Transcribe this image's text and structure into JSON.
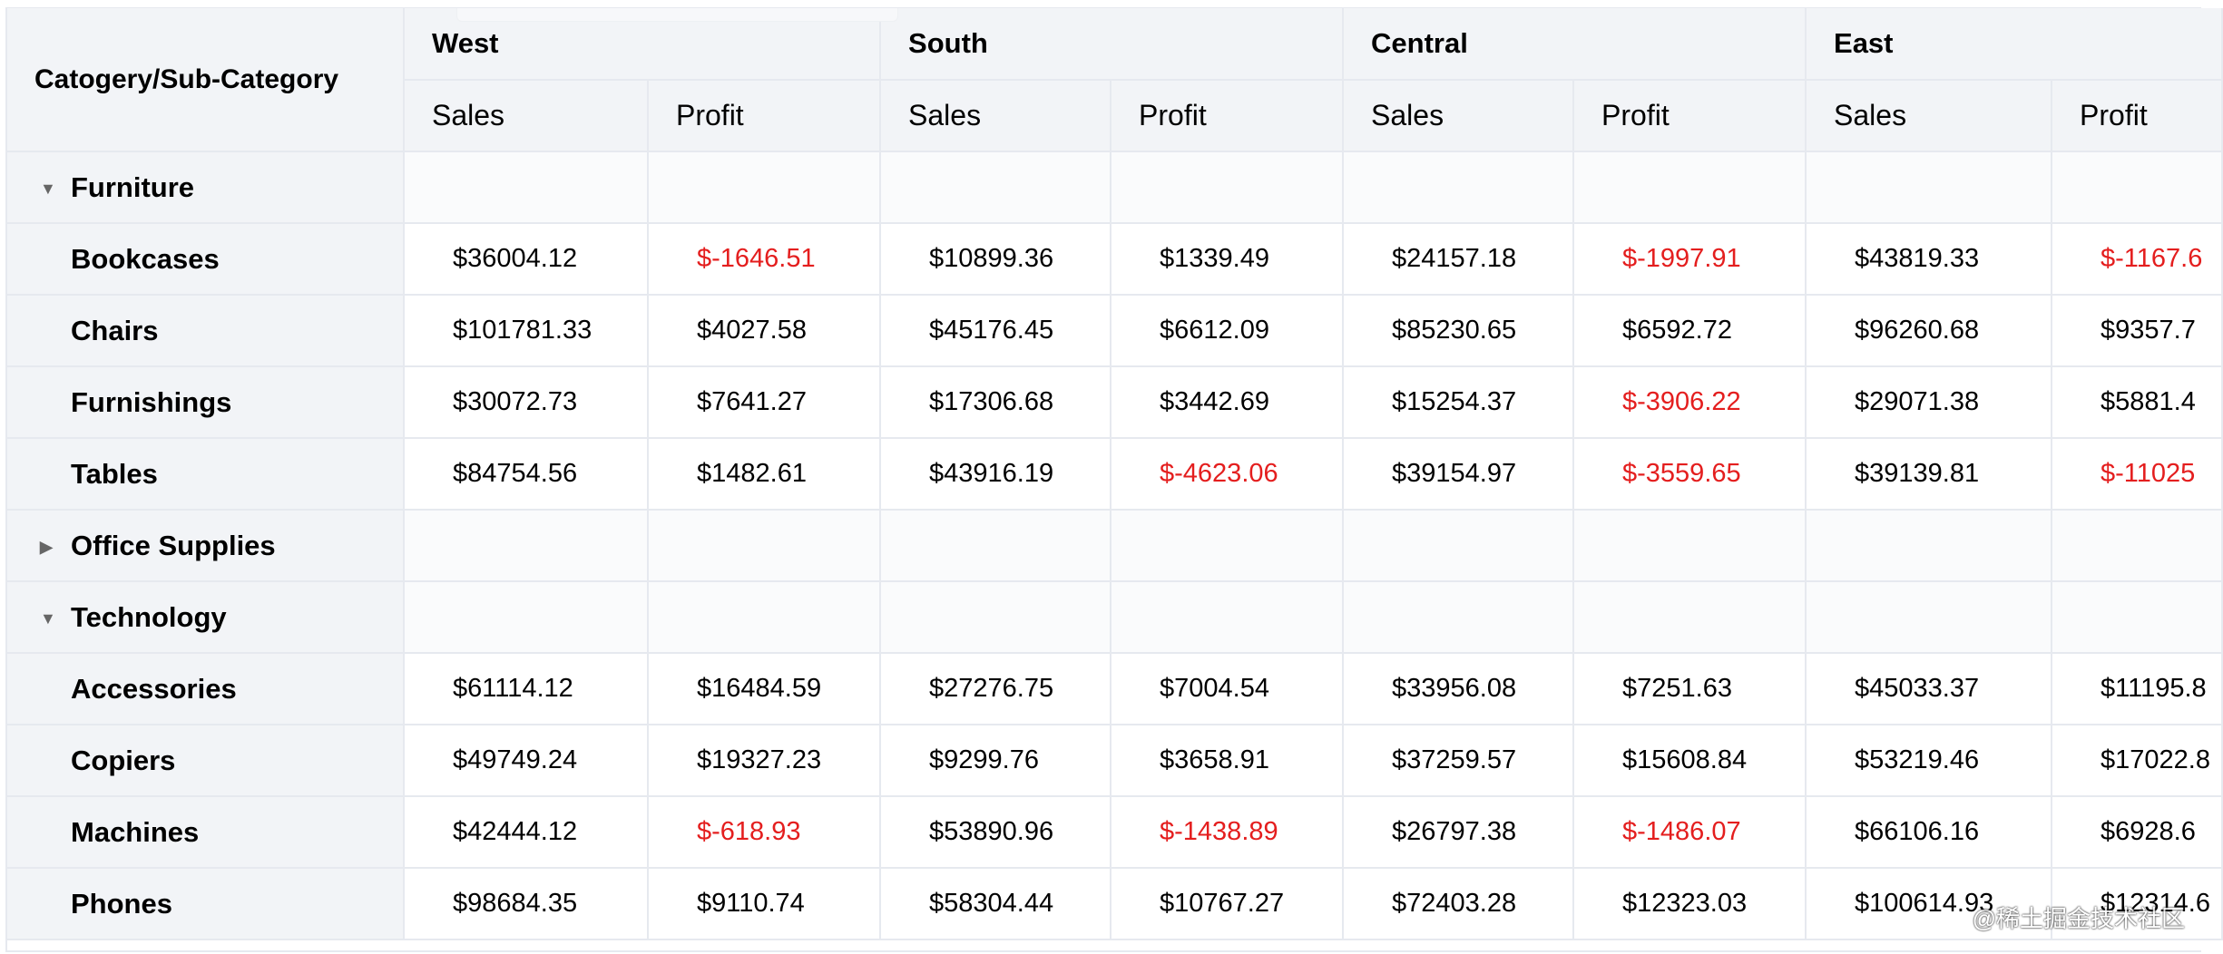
{
  "corner_label": "Catogery/Sub-Category",
  "regions": [
    "West",
    "South",
    "Central",
    "East"
  ],
  "measures": [
    "Sales",
    "Profit"
  ],
  "negative_color": "#e41e1e",
  "groups": [
    {
      "name": "Furniture",
      "expanded": true,
      "toggle_icon": "caret-down-icon",
      "rows": [
        {
          "name": "Bookcases",
          "values": [
            "$36004.12",
            "$-1646.51",
            "$10899.36",
            "$1339.49",
            "$24157.18",
            "$-1997.91",
            "$43819.33",
            "$-1167.6"
          ]
        },
        {
          "name": "Chairs",
          "values": [
            "$101781.33",
            "$4027.58",
            "$45176.45",
            "$6612.09",
            "$85230.65",
            "$6592.72",
            "$96260.68",
            "$9357.7"
          ]
        },
        {
          "name": "Furnishings",
          "values": [
            "$30072.73",
            "$7641.27",
            "$17306.68",
            "$3442.69",
            "$15254.37",
            "$-3906.22",
            "$29071.38",
            "$5881.4"
          ]
        },
        {
          "name": "Tables",
          "values": [
            "$84754.56",
            "$1482.61",
            "$43916.19",
            "$-4623.06",
            "$39154.97",
            "$-3559.65",
            "$39139.81",
            "$-11025"
          ]
        }
      ]
    },
    {
      "name": "Office Supplies",
      "expanded": false,
      "toggle_icon": "caret-right-icon",
      "rows": []
    },
    {
      "name": "Technology",
      "expanded": true,
      "toggle_icon": "caret-down-icon",
      "rows": [
        {
          "name": "Accessories",
          "values": [
            "$61114.12",
            "$16484.59",
            "$27276.75",
            "$7004.54",
            "$33956.08",
            "$7251.63",
            "$45033.37",
            "$11195.8"
          ]
        },
        {
          "name": "Copiers",
          "values": [
            "$49749.24",
            "$19327.23",
            "$9299.76",
            "$3658.91",
            "$37259.57",
            "$15608.84",
            "$53219.46",
            "$17022.8"
          ]
        },
        {
          "name": "Machines",
          "values": [
            "$42444.12",
            "$-618.93",
            "$53890.96",
            "$-1438.89",
            "$26797.38",
            "$-1486.07",
            "$66106.16",
            "$6928.6"
          ]
        },
        {
          "name": "Phones",
          "values": [
            "$98684.35",
            "$9110.74",
            "$58304.44",
            "$10767.27",
            "$72403.28",
            "$12323.03",
            "$100614.93",
            "$12314.6"
          ]
        }
      ]
    }
  ],
  "watermark": "@稀土掘金技术社区"
}
